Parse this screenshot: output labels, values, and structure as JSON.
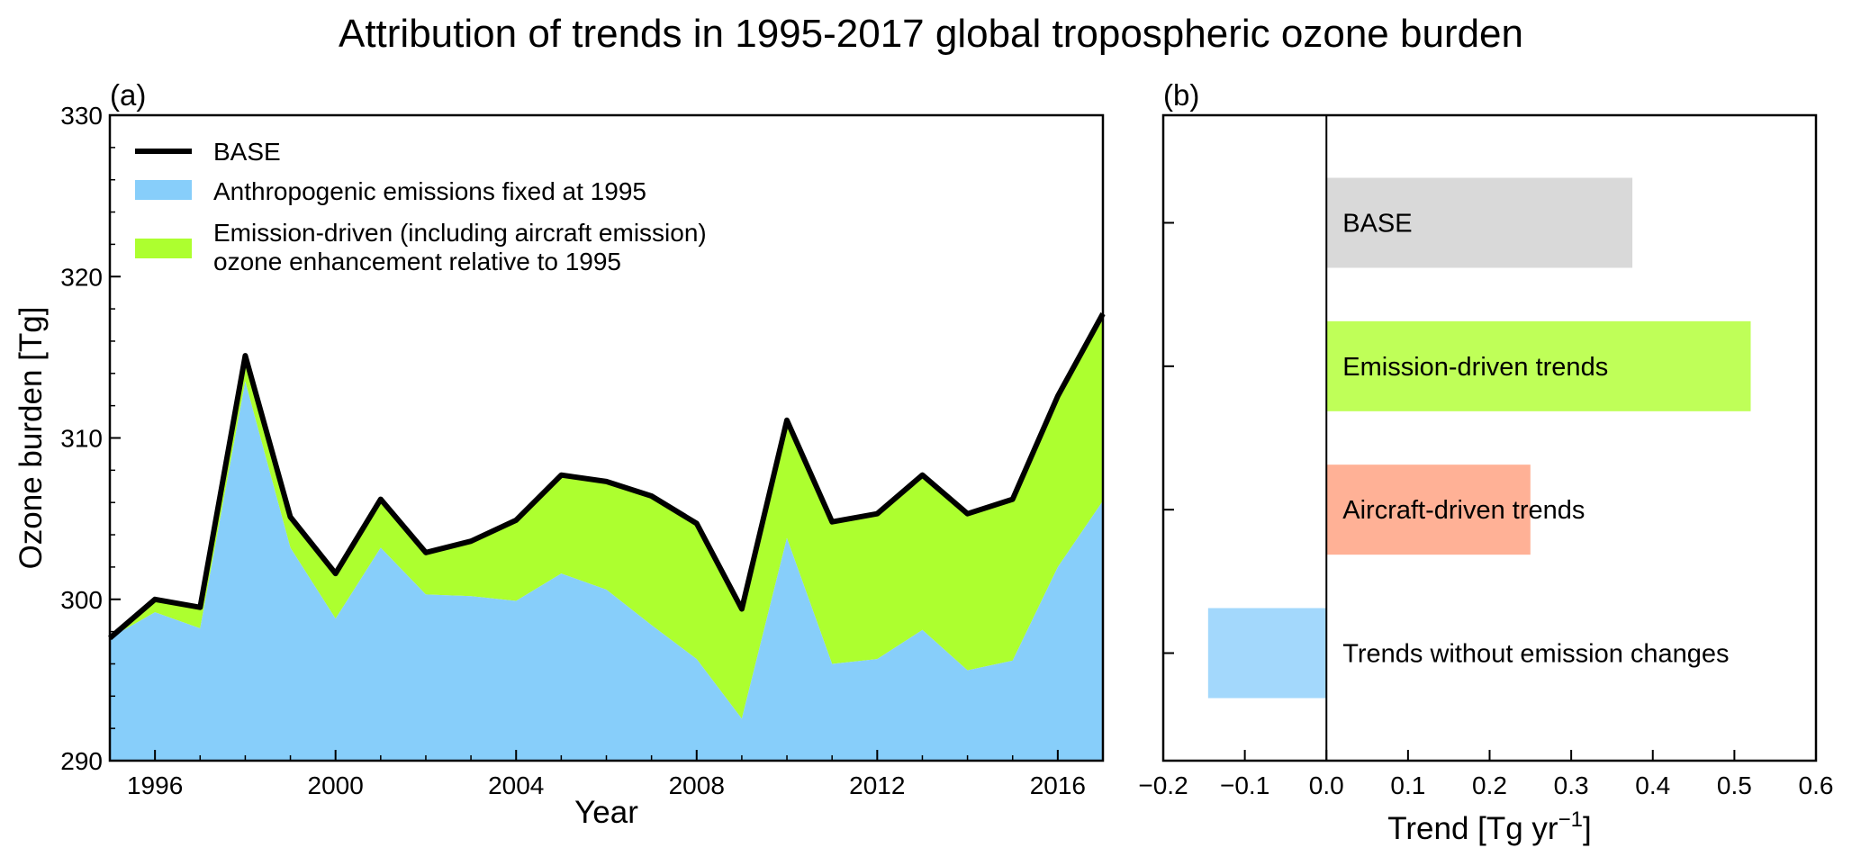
{
  "figure": {
    "title": "Attribution of trends in 1995-2017 global tropospheric ozone burden"
  },
  "chart_data": [
    {
      "type": "area",
      "panel_label": "(a)",
      "xlabel": "Year",
      "ylabel": "Ozone burden [Tg]",
      "xlim": [
        1995,
        2017
      ],
      "ylim": [
        290,
        330
      ],
      "x_ticks": [
        1996,
        2000,
        2004,
        2008,
        2012,
        2016
      ],
      "y_ticks": [
        290,
        300,
        310,
        320,
        330
      ],
      "grid": false,
      "legend_position": "top-left",
      "x": [
        1995,
        1996,
        1997,
        1998,
        1999,
        2000,
        2001,
        2002,
        2003,
        2004,
        2005,
        2006,
        2007,
        2008,
        2009,
        2010,
        2011,
        2012,
        2013,
        2014,
        2015,
        2016,
        2017
      ],
      "series": [
        {
          "name": "BASE",
          "kind": "line",
          "color": "#000000",
          "values": [
            297.6,
            300.0,
            299.5,
            315.1,
            305.1,
            301.6,
            306.2,
            302.9,
            303.6,
            304.9,
            307.7,
            307.3,
            306.4,
            304.7,
            299.4,
            311.1,
            304.8,
            305.3,
            307.7,
            305.3,
            306.2,
            312.6,
            317.7
          ]
        },
        {
          "name": "Anthropogenic emissions fixed at 1995",
          "kind": "area",
          "color": "#87cefa",
          "values": [
            297.6,
            299.2,
            298.2,
            313.5,
            303.2,
            298.8,
            303.2,
            300.3,
            300.2,
            299.9,
            301.6,
            300.6,
            298.4,
            296.3,
            292.6,
            303.8,
            296.0,
            296.3,
            298.1,
            295.6,
            296.2,
            302.0,
            306.1
          ]
        },
        {
          "name": "Emission-driven (including aircraft emission)\nozone enhancement relative to 1995",
          "legend_lines": [
            "Emission-driven (including aircraft emission)",
            "ozone enhancement relative to 1995"
          ],
          "kind": "area-between",
          "color": "#adff2f"
        }
      ]
    },
    {
      "type": "bar",
      "orientation": "horizontal",
      "panel_label": "(b)",
      "xlabel": "Trend [Tg yr",
      "xlabel_superscript": "−1",
      "xlabel_suffix": "]",
      "xlim": [
        -0.2,
        0.6
      ],
      "x_ticks": [
        -0.2,
        -0.1,
        0.0,
        0.1,
        0.2,
        0.3,
        0.4,
        0.5,
        0.6
      ],
      "x_tick_labels": [
        "−0.2",
        "−0.1",
        "0.0",
        "0.1",
        "0.2",
        "0.3",
        "0.4",
        "0.5",
        "0.6"
      ],
      "grid": false,
      "categories": [
        "BASE",
        "Emission-driven trends",
        "Aircraft-driven trends",
        "Trends without emission changes"
      ],
      "values": [
        0.375,
        0.52,
        0.25,
        -0.145
      ],
      "colors": [
        "#d9d9d9",
        "#bfff58",
        "#ffb196",
        "#a3d8fc"
      ]
    }
  ]
}
